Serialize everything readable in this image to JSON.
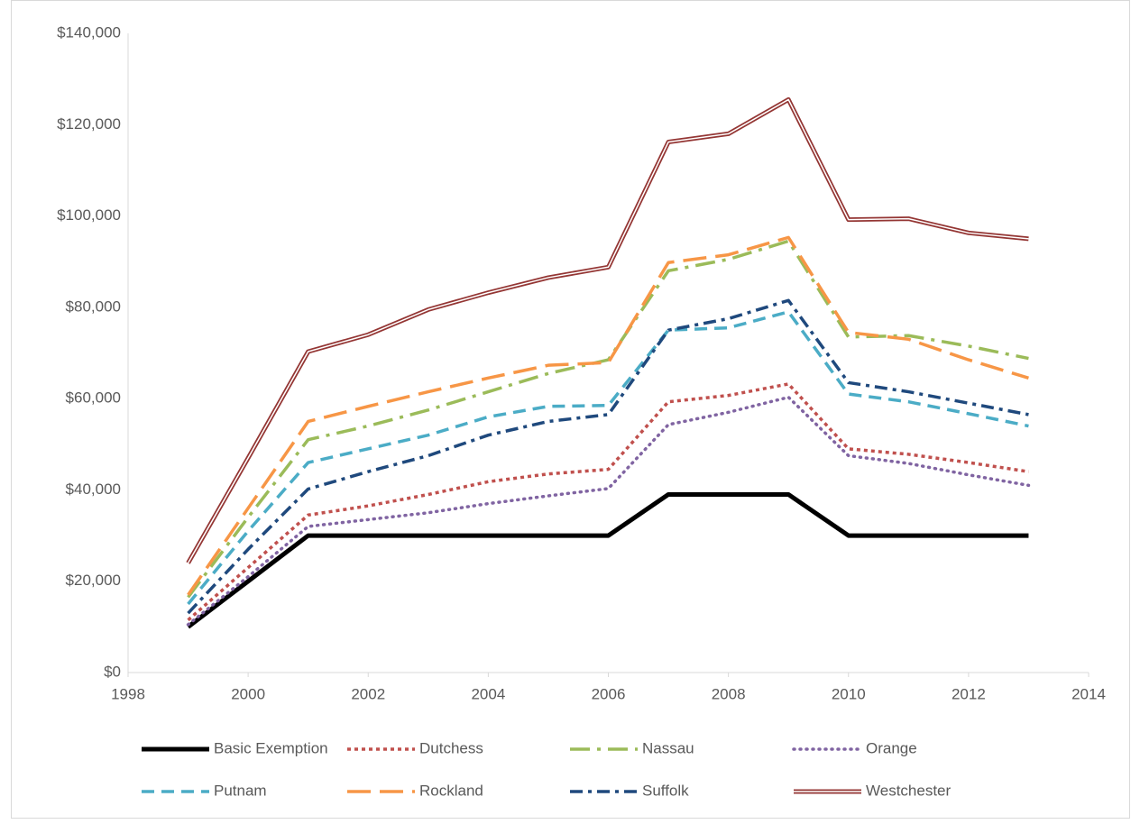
{
  "chart_data": {
    "type": "line",
    "x": [
      1999,
      2000,
      2001,
      2002,
      2003,
      2004,
      2005,
      2006,
      2007,
      2008,
      2009,
      2010,
      2011,
      2012,
      2013
    ],
    "series": [
      {
        "name": "Basic Exemption",
        "color": "#000000",
        "dash": "solid",
        "values": [
          10000,
          20000,
          30000,
          30000,
          30000,
          30000,
          30000,
          30000,
          39000,
          39000,
          39000,
          30000,
          30000,
          30000,
          30000
        ]
      },
      {
        "name": "Dutchess",
        "color": "#c0504d",
        "dash": "dot",
        "values": [
          11500,
          23000,
          34500,
          36500,
          39000,
          41800,
          43500,
          44500,
          59300,
          60700,
          63200,
          49000,
          47800,
          46000,
          44000
        ]
      },
      {
        "name": "Nassau",
        "color": "#9bbb59",
        "dash": "longdashdot",
        "values": [
          16500,
          34000,
          51000,
          54000,
          57500,
          61500,
          65500,
          68500,
          88000,
          90500,
          94500,
          73500,
          73800,
          71500,
          68800
        ]
      },
      {
        "name": "Orange",
        "color": "#8064a2",
        "dash": "roundedot",
        "values": [
          10500,
          21000,
          32000,
          33500,
          35000,
          37000,
          38700,
          40300,
          54300,
          57000,
          60300,
          47500,
          45800,
          43300,
          41000
        ]
      },
      {
        "name": "Putnam",
        "color": "#4bacc6",
        "dash": "dash",
        "values": [
          15000,
          31000,
          46000,
          49000,
          52000,
          56000,
          58300,
          58500,
          75000,
          75500,
          79000,
          61000,
          59300,
          56700,
          54000
        ]
      },
      {
        "name": "Rockland",
        "color": "#f79646",
        "dash": "longdash",
        "values": [
          17000,
          36000,
          55000,
          58300,
          61500,
          64500,
          67300,
          67900,
          89800,
          91500,
          95300,
          74500,
          73000,
          68500,
          64500
        ]
      },
      {
        "name": "Suffolk",
        "color": "#1f497d",
        "dash": "dashdot",
        "values": [
          13000,
          27000,
          40200,
          44000,
          47500,
          52000,
          55000,
          56500,
          75000,
          77500,
          81500,
          63500,
          61500,
          59000,
          56500
        ]
      },
      {
        "name": "Westchester",
        "color": "#943634",
        "dash": "double",
        "values": [
          24000,
          47000,
          70300,
          74000,
          79500,
          83200,
          86500,
          88800,
          116200,
          118000,
          125500,
          99200,
          99400,
          96300,
          95000
        ]
      }
    ],
    "xlim": [
      1998,
      2014
    ],
    "xticks": [
      1998,
      2000,
      2002,
      2004,
      2006,
      2008,
      2010,
      2012,
      2014
    ],
    "ylim": [
      0,
      140000
    ],
    "yticks": [
      {
        "value": 0,
        "label": "$0"
      },
      {
        "value": 20000,
        "label": "$20,000"
      },
      {
        "value": 40000,
        "label": "$40,000"
      },
      {
        "value": 60000,
        "label": "$60,000"
      },
      {
        "value": 80000,
        "label": "$80,000"
      },
      {
        "value": 100000,
        "label": "$100,000"
      },
      {
        "value": 120000,
        "label": "$120,000"
      },
      {
        "value": 140000,
        "label": "$140,000"
      }
    ],
    "grid": false,
    "legend": "bottom"
  }
}
